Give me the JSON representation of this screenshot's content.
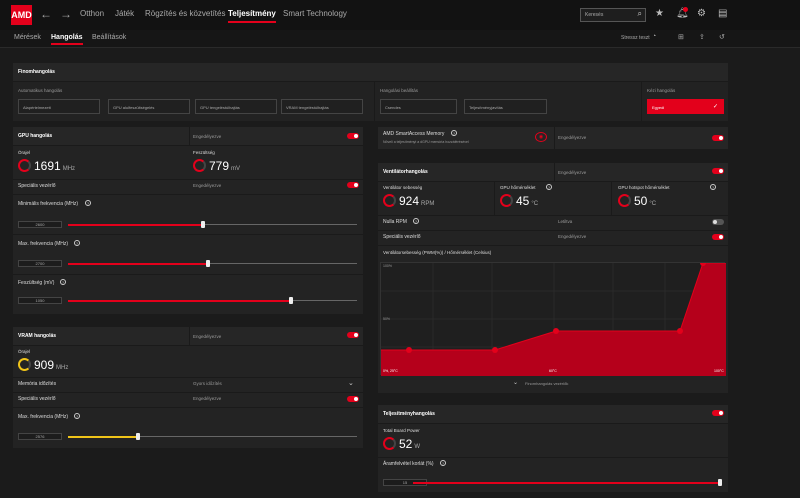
{
  "nav": {
    "logo": "AMD",
    "tabs": [
      "Otthon",
      "Játék",
      "Rögzítés és közvetítés",
      "Teljesítmény",
      "Smart Technology"
    ],
    "search_placeholder": "Keresés"
  },
  "subnav": {
    "tabs": [
      "Mérések",
      "Hangolás",
      "Beállítások"
    ],
    "stress_test": "Stressz teszt"
  },
  "fine_tuning": {
    "title": "Finomhangolás",
    "auto_label": "Automatikus hangolás",
    "auto_buttons": [
      "Alapértelmezett",
      "GPU alulfeszültségelés",
      "GPU tengeléstúlhajtás",
      "VRAM tengeléstúlhajtás"
    ],
    "tuning_presets_label": "Hangolási beállítás",
    "preset_buttons": [
      "Csendes",
      "Teljesítményjavítás"
    ],
    "manual_label": "Kézi hangolás",
    "manual_button": "Egyedi"
  },
  "gpu": {
    "title": "GPU hangolás",
    "enable_label": "Engedélyezve",
    "clock_label": "Órajel",
    "clock_value": "1691",
    "clock_unit": "MHz",
    "voltage_label": "Feszültség",
    "voltage_value": "779",
    "voltage_unit": "mV",
    "advanced_label": "Speciális vezérlő",
    "advanced_state": "Engedélyezve",
    "min_freq_label": "Minimális frekvencia (MHz)",
    "min_freq_value": "2600",
    "max_freq_label": "Max. frekvencia (MHz)",
    "max_freq_value": "2700",
    "voltage_slider_label": "Feszültség (mV)",
    "voltage_slider_value": "1050"
  },
  "vram": {
    "title": "VRAM hangolás",
    "enable_label": "Engedélyezve",
    "clock_label": "Órajel",
    "clock_value": "909",
    "clock_unit": "MHz",
    "timing_label": "Memória időzítés",
    "timing_value": "Gyors időzítés",
    "advanced_label": "Speciális vezérlő",
    "advanced_state": "Engedélyezve",
    "max_freq_label": "Max. frekvencia (MHz)",
    "max_freq_value": "2576"
  },
  "sam": {
    "title": "AMD SmartAccess Memory",
    "desc": "Növeli a teljesítményt a dGPU memória hozzáférésével",
    "state": "Engedélyezve"
  },
  "fan": {
    "title": "Ventilátorhangolás",
    "enable_label": "Engedélyezve",
    "speed_label": "Ventilátor sebesség",
    "speed_value": "924",
    "speed_unit": "RPM",
    "temp_label": "GPU hőmérséklet",
    "temp_value": "45",
    "temp_unit": "°C",
    "hotspot_label": "GPU hotspot hőmérséklet",
    "hotspot_value": "50",
    "hotspot_unit": "°C",
    "zero_rpm_label": "Nulla RPM",
    "zero_rpm_state": "Letiltva",
    "advanced_label": "Speciális vezérlő",
    "advanced_state": "Engedélyezve",
    "curve_title": "Ventilátorsebesség (PWM(%)) / Hőmérséklet (Celsius)",
    "y_top": "100%",
    "y_mid": "50%",
    "x_left": "0%, 25°C",
    "x_mid": "60°C",
    "x_right": "100°C",
    "collapse_label": "Finomhangolás vezérlők"
  },
  "power": {
    "title": "Teljesítményhangolás",
    "board_power_label": "Total Board Power",
    "board_power_value": "52",
    "board_power_unit": "W",
    "limit_label": "Áramfelvétel korlát (%)",
    "limit_value": "15"
  }
}
